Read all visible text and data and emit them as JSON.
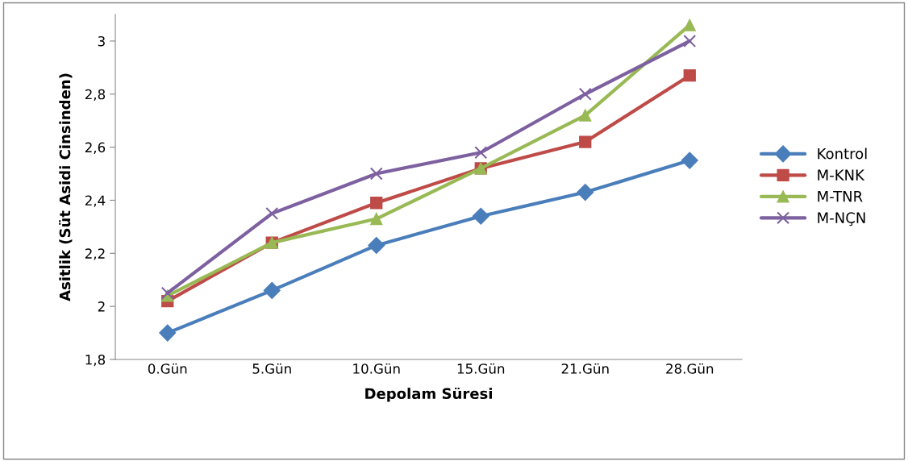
{
  "chart_data": {
    "type": "line",
    "xlabel": "Depolam Süresi",
    "ylabel": "Asitlik (Süt Asidi Cinsinden)",
    "categories": [
      "0.Gün",
      "5.Gün",
      "10.Gün",
      "15.Gün",
      "21.Gün",
      "28.Gün"
    ],
    "series": [
      {
        "name": "Kontrol",
        "color": "#4a7ebb",
        "marker": "diamond",
        "values": [
          1.9,
          2.06,
          2.23,
          2.34,
          2.43,
          2.55
        ]
      },
      {
        "name": "M-KNK",
        "color": "#be4b48",
        "marker": "square",
        "values": [
          2.02,
          2.24,
          2.39,
          2.52,
          2.62,
          2.87
        ]
      },
      {
        "name": "M-TNR",
        "color": "#98b954",
        "marker": "triangle",
        "values": [
          2.04,
          2.24,
          2.33,
          2.52,
          2.72,
          3.06
        ]
      },
      {
        "name": "M-NÇN",
        "color": "#7d60a0",
        "marker": "cross",
        "values": [
          2.05,
          2.35,
          2.5,
          2.58,
          2.8,
          3.0
        ]
      }
    ],
    "ylim": [
      1.8,
      3.1
    ],
    "yticks": [
      {
        "value": 1.8,
        "label": "1,8"
      },
      {
        "value": 2.0,
        "label": "2"
      },
      {
        "value": 2.2,
        "label": "2,2"
      },
      {
        "value": 2.4,
        "label": "2,4"
      },
      {
        "value": 2.6,
        "label": "2,6"
      },
      {
        "value": 2.8,
        "label": "2,8"
      },
      {
        "value": 3.0,
        "label": "3"
      }
    ],
    "grid": false,
    "legend": "right",
    "line_style": "solid"
  }
}
